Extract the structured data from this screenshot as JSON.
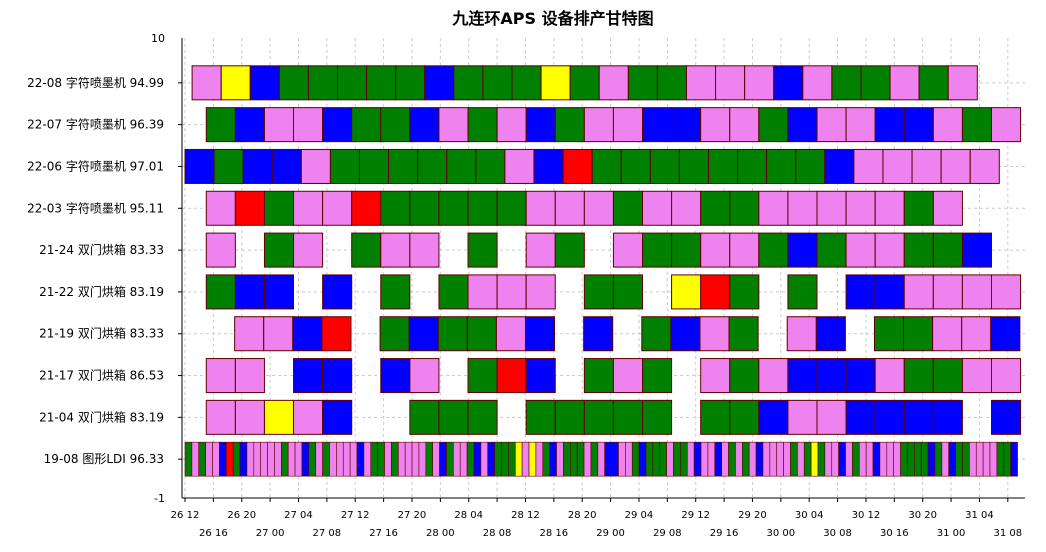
{
  "chart_data": {
    "type": "gantt",
    "title": "九连环APS 设备排产甘特图",
    "ylim": [
      -1,
      10
    ],
    "ytick_labels": [
      "10",
      "-1"
    ],
    "x_tick_labels": [
      "26 12",
      "26 16",
      "26 20",
      "27 00",
      "27 04",
      "27 08",
      "27 12",
      "27 16",
      "27 20",
      "28 00",
      "28 04",
      "28 08",
      "28 12",
      "28 16",
      "28 20",
      "29 00",
      "29 04",
      "29 08",
      "29 12",
      "29 16",
      "29 20",
      "30 00",
      "30 04",
      "30 08",
      "30 12",
      "30 16",
      "30 20",
      "31 00",
      "31 04",
      "31 08"
    ],
    "x_start_hour": 0,
    "x_end_hour": 118,
    "grid": true,
    "status_colors": {
      "G": "#008000",
      "B": "#0000ff",
      "P": "#ee82ee",
      "Y": "#ffff00",
      "R": "#ff0000"
    },
    "rows": [
      {
        "label": "22-08 字符喷墨机 94.99",
        "start": 1,
        "dur": 4.1,
        "tasks": "PYBGGGGGBGGGYGPGGPPPBPGGPGP"
      },
      {
        "label": "22-07 字符喷墨机 96.39",
        "start": 3,
        "dur": 4.1,
        "tasks": "GBPPBGGBPGPBGPPBBPPGBPPBBPGP"
      },
      {
        "label": "22-06 字符喷墨机 97.01",
        "start": 0,
        "dur": 4.1,
        "tasks": "BGBBPGGGGGGPBRGGGGGGGGBPPPPPG"
      },
      {
        "label": "22-03 字符喷墨机 95.11",
        "start": 3,
        "dur": 4.1,
        "tasks": "PRGPPRGGGGGPPPGPPGGPPPPPGP"
      },
      {
        "label": "21-24 双门烘箱 83.33",
        "start": 3,
        "dur": 4.1,
        "tasks": "P_GP_GPP_G_PG_PGGPPGBGPPGGB_PG"
      },
      {
        "label": "21-22 双门烘箱 83.19",
        "start": 3,
        "dur": 4.1,
        "tasks": "GBB_B_G_GPPP_GG_YRG_G_BBPPPPPPP"
      },
      {
        "label": "21-19 双门烘箱 83.33",
        "start": 7,
        "dur": 4.1,
        "tasks": "PPBR_GBGGPB_B_GBPG_PB_GGPPBBP"
      },
      {
        "label": "21-17 双门烘箱 86.53",
        "start": 3,
        "dur": 4.1,
        "tasks": "PP_BB_BP_GRB_GPG_PGPBBBPGGPPPG"
      },
      {
        "label": "21-04 双门烘箱 83.19",
        "start": 3,
        "dur": 4.1,
        "tasks": "PPYPB__GGG_GGGGG_GGBPPBBBB_BPG"
      },
      {
        "label": "19-08 图形LDI  96.33",
        "start": 0,
        "dur": 0.97,
        "tasks": "GPGPPBRGBPPPPPGPPBGPGPPPPBPGGPGPPPPGPBGPPGBPBGGGYPYPGBPGGGPGPBBPPGBGGGPGGPBPPBPGPGPBPPPPGPGYGPPBPGPPBPPPGGGGBGPBGGPPPPGGBBBPGBPBPPGPPPBGPPPPGPPBPGGGGGPPGGGGGYGBGGGBGGGGGPBGGGGGGGPPBPPPPPPGBPGPYPGGGPYBPPPGGPGPBGGGPPPPBGBPPPPGPGPBPPPGGBPGPBG"
      }
    ]
  }
}
